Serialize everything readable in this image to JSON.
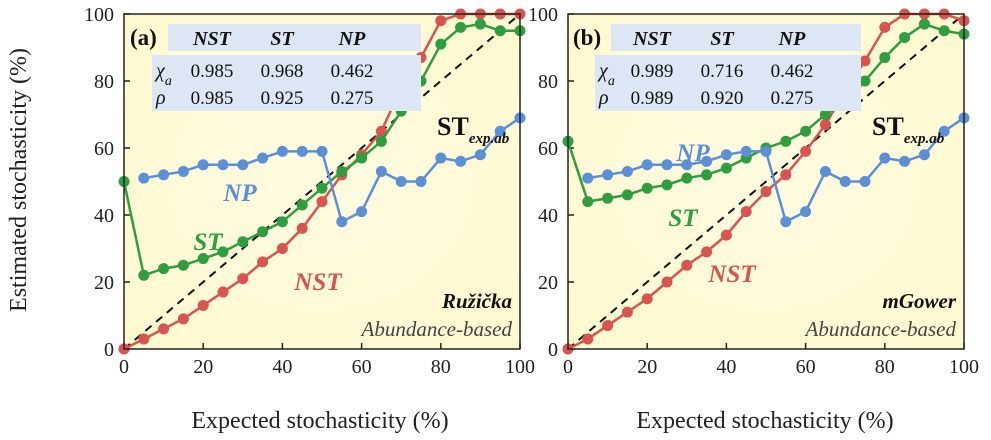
{
  "figure": {
    "ylabel": "Estimated stochasticity (%)",
    "xlabel": "Expected stochasticity (%)"
  },
  "table": {
    "columns": [
      "NST",
      "ST",
      "NP"
    ],
    "rows": [
      {
        "label": "χ",
        "sub": "a"
      },
      {
        "label": "ρ",
        "sub": ""
      }
    ]
  },
  "reference_label": {
    "main": "ST",
    "sub": "exp.ab"
  },
  "colors": {
    "NST": "#d9534f",
    "ST": "#2e9e3f",
    "NP": "#5b8fd6",
    "reference": "#111111",
    "background": "#fff9cf"
  },
  "chart_data": [
    {
      "type": "line",
      "panel": "(a)",
      "method": "Ružička",
      "basis": "Abundance-based",
      "xlim": [
        0,
        100
      ],
      "ylim": [
        0,
        100
      ],
      "xticks": [
        0,
        20,
        40,
        60,
        80,
        100
      ],
      "yticks": [
        0,
        20,
        40,
        60,
        80,
        100
      ],
      "x": [
        0,
        5,
        10,
        15,
        20,
        25,
        30,
        35,
        40,
        45,
        50,
        55,
        60,
        65,
        70,
        75,
        80,
        85,
        90,
        95,
        100
      ],
      "series": [
        {
          "name": "NST",
          "values": [
            0,
            3,
            6,
            9,
            13,
            17,
            21,
            26,
            30,
            36,
            44,
            52,
            58,
            65,
            78,
            87,
            98,
            100,
            100,
            100,
            100
          ]
        },
        {
          "name": "ST",
          "values": [
            50,
            22,
            24,
            25,
            27,
            29,
            32,
            35,
            38,
            43,
            48,
            53,
            57,
            62,
            71,
            80,
            91,
            96,
            97,
            95,
            95
          ]
        },
        {
          "name": "NP",
          "values": [
            null,
            51,
            52,
            53,
            55,
            55,
            55,
            57,
            59,
            59,
            59,
            38,
            41,
            53,
            50,
            50,
            57,
            56,
            58,
            65,
            69
          ]
        }
      ],
      "stats": {
        "chi_a": [
          "0.985",
          "0.968",
          "0.462"
        ],
        "rho": [
          "0.985",
          "0.925",
          "0.275"
        ]
      }
    },
    {
      "type": "line",
      "panel": "(b)",
      "method": "mGower",
      "basis": "Abundance-based",
      "xlim": [
        0,
        100
      ],
      "ylim": [
        0,
        100
      ],
      "xticks": [
        0,
        20,
        40,
        60,
        80,
        100
      ],
      "yticks": [
        0,
        20,
        40,
        60,
        80,
        100
      ],
      "x": [
        0,
        5,
        10,
        15,
        20,
        25,
        30,
        35,
        40,
        45,
        50,
        55,
        60,
        65,
        70,
        75,
        80,
        85,
        90,
        95,
        100
      ],
      "series": [
        {
          "name": "NST",
          "values": [
            0,
            3,
            7,
            11,
            15,
            20,
            25,
            29,
            34,
            41,
            47,
            52,
            59,
            67,
            77,
            86,
            96,
            100,
            100,
            100,
            98
          ]
        },
        {
          "name": "ST",
          "values": [
            62,
            44,
            45,
            46,
            48,
            49,
            51,
            52,
            54,
            57,
            60,
            62,
            65,
            70,
            74,
            80,
            87,
            93,
            97,
            95,
            94
          ]
        },
        {
          "name": "NP",
          "values": [
            null,
            51,
            52,
            53,
            55,
            55,
            55,
            56,
            58,
            59,
            59,
            38,
            41,
            53,
            50,
            50,
            57,
            56,
            58,
            65,
            69
          ]
        }
      ],
      "stats": {
        "chi_a": [
          "0.989",
          "0.716",
          "0.462"
        ],
        "rho": [
          "0.989",
          "0.920",
          "0.275"
        ]
      }
    }
  ]
}
